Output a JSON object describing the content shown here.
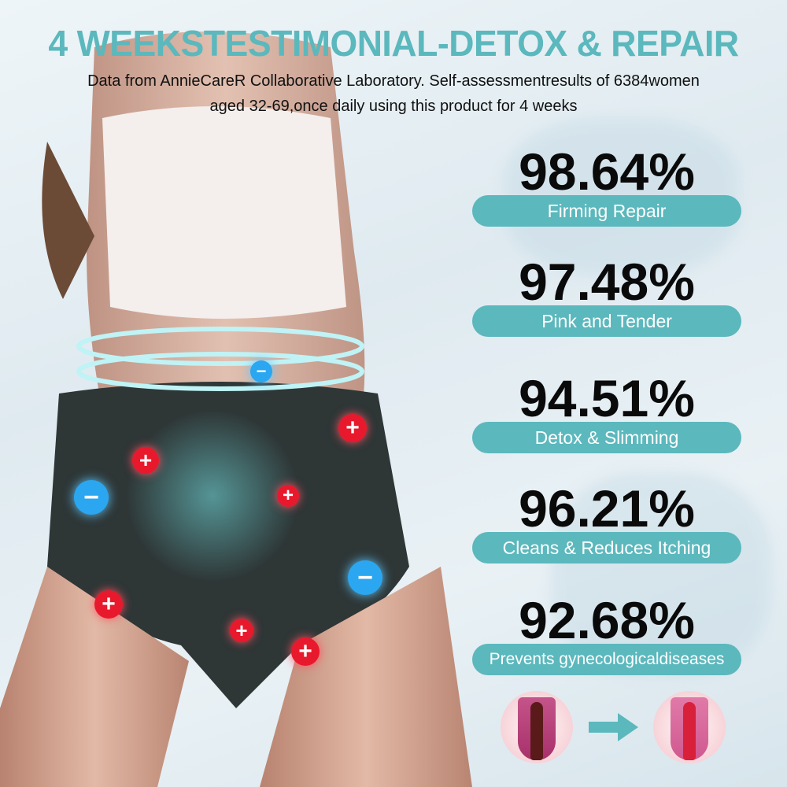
{
  "header": {
    "title": "4 WEEKSTESTIMONIAL-DETOX & REPAIR",
    "subtitle_line1": "Data from AnnieCareR Collaborative Laboratory. Self-assessmentresults of 6384women",
    "subtitle_line2": "aged 32-69,once daily using this product for 4 weeks"
  },
  "stats": [
    {
      "value": "98.64%",
      "label": "Firming Repair"
    },
    {
      "value": "97.48%",
      "label": "Pink and Tender"
    },
    {
      "value": "94.51%",
      "label": "Detox & Slimming"
    },
    {
      "value": "96.21%",
      "label": "Cleans & Reduces Itching"
    },
    {
      "value": "92.68%",
      "label": "Prevents gynecologicaldiseases"
    }
  ],
  "colors": {
    "accent": "#5bb8bd",
    "plus_badge": "#e8192c",
    "minus_badge": "#2aa7f0"
  },
  "icons": {
    "plus": "+",
    "minus": "−"
  }
}
